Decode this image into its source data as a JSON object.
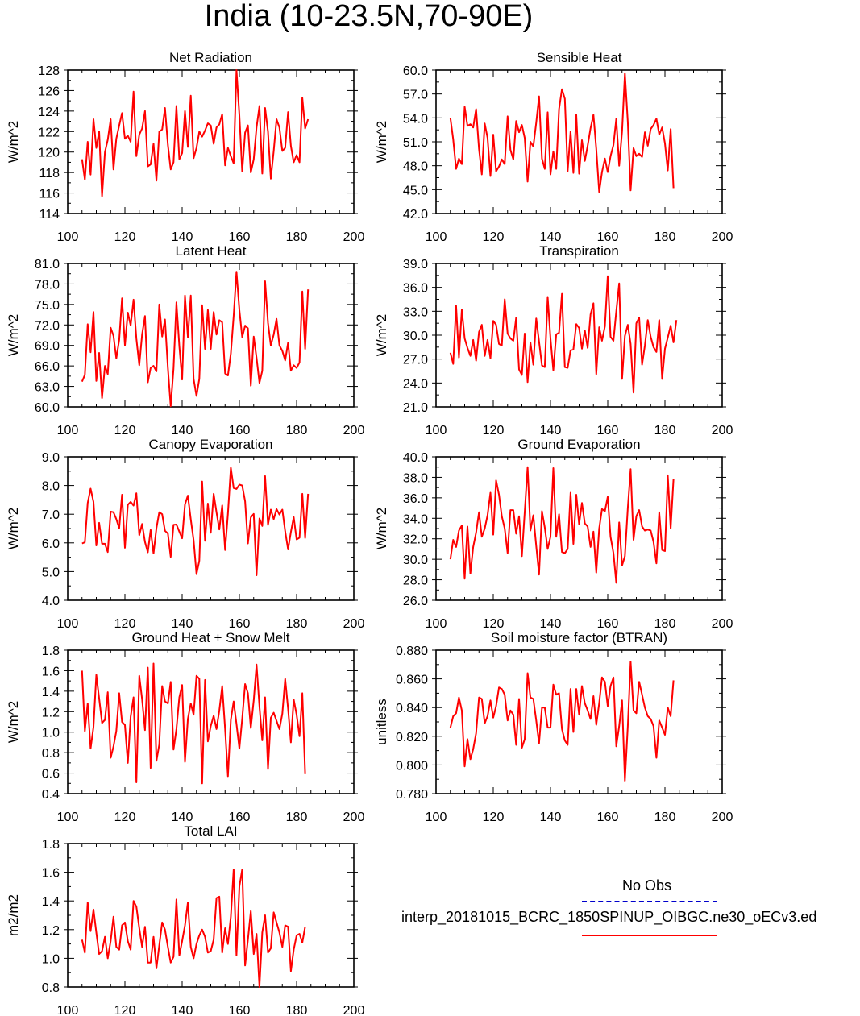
{
  "title": "India (10-23.5N,70-90E)",
  "line_color": "#ff0000",
  "legend": {
    "entries": [
      {
        "label": "No Obs",
        "color": "#0000cc",
        "style": "dashed"
      },
      {
        "label": "interp_20181015_BCRC_1850SPINUP_OIBGC.ne30_oECv3.ed",
        "color": "#ff0000",
        "style": "solid"
      }
    ]
  },
  "chart_data": [
    {
      "type": "line",
      "title": "Net Radiation",
      "ylabel": "W/m^2",
      "xlabel": "",
      "xlim": [
        100,
        200
      ],
      "xticks": [
        "100",
        "120",
        "140",
        "160",
        "180",
        "200"
      ],
      "ylim": [
        114,
        128
      ],
      "yticks": [
        "114",
        "116",
        "118",
        "120",
        "122",
        "124",
        "126",
        "128"
      ],
      "x_start": 105,
      "values": [
        119.3,
        117.3,
        121.0,
        117.8,
        123.2,
        120.4,
        122.0,
        115.7,
        120.0,
        121.2,
        123.2,
        118.3,
        121.3,
        122.6,
        123.8,
        121.3,
        121.6,
        121.0,
        125.9,
        119.6,
        121.7,
        122.3,
        124.0,
        118.6,
        118.8,
        120.8,
        117.2,
        122.0,
        122.2,
        124.3,
        120.7,
        118.3,
        119.0,
        124.5,
        119.3,
        119.9,
        124.0,
        120.5,
        125.5,
        119.4,
        120.4,
        122.0,
        121.5,
        122.1,
        122.8,
        122.6,
        120.8,
        122.4,
        122.7,
        123.7,
        118.7,
        120.4,
        119.6,
        118.9,
        128.0,
        123.6,
        118.1,
        121.9,
        122.6,
        118.0,
        119.3,
        122.4,
        124.5,
        117.9,
        124.3,
        122.0,
        117.4,
        120.1,
        123.2,
        122.4,
        120.1,
        120.4,
        123.9,
        120.6,
        119.0,
        119.7,
        119.0,
        125.3,
        122.3,
        123.2
      ]
    },
    {
      "type": "line",
      "title": "Sensible Heat",
      "ylabel": "W/m^2",
      "xlabel": "",
      "xlim": [
        100,
        200
      ],
      "xticks": [
        "100",
        "120",
        "140",
        "160",
        "180",
        "200"
      ],
      "ylim": [
        42,
        60
      ],
      "yticks": [
        "42.0",
        "45.0",
        "48.0",
        "51.0",
        "54.0",
        "57.0",
        "60.0"
      ],
      "x_start": 105,
      "values": [
        54.0,
        51.3,
        47.6,
        48.9,
        48.2,
        55.4,
        53.0,
        53.2,
        52.8,
        55.1,
        50.1,
        46.9,
        53.3,
        51.5,
        46.7,
        51.9,
        47.3,
        47.9,
        48.8,
        48.2,
        54.2,
        50.0,
        48.8,
        53.6,
        52.2,
        53.1,
        51.5,
        46.0,
        51.0,
        50.4,
        53.4,
        56.7,
        48.9,
        47.6,
        54.7,
        46.9,
        49.8,
        47.6,
        55.1,
        57.6,
        56.4,
        47.3,
        52.3,
        47.1,
        54.4,
        47.0,
        51.2,
        48.6,
        50.5,
        52.7,
        54.4,
        50.1,
        44.7,
        47.2,
        48.9,
        47.2,
        49.2,
        50.6,
        53.9,
        48.0,
        52.3,
        59.6,
        53.5,
        44.9,
        50.2,
        49.2,
        49.5,
        49.1,
        52.2,
        50.5,
        52.6,
        53.1,
        53.9,
        51.9,
        52.8,
        50.8,
        47.4,
        52.6,
        45.2
      ]
    },
    {
      "type": "line",
      "title": "Latent Heat",
      "ylabel": "W/m^2",
      "xlabel": "",
      "xlim": [
        100,
        200
      ],
      "xticks": [
        "100",
        "120",
        "140",
        "160",
        "180",
        "200"
      ],
      "ylim": [
        60,
        81
      ],
      "yticks": [
        "60.0",
        "63.0",
        "66.0",
        "69.0",
        "72.0",
        "75.0",
        "78.0",
        "81.0"
      ],
      "x_start": 105,
      "values": [
        63.7,
        64.7,
        72.1,
        68.0,
        73.9,
        63.8,
        67.9,
        61.3,
        66.0,
        64.8,
        71.6,
        70.4,
        67.1,
        69.8,
        75.9,
        69.0,
        73.8,
        71.9,
        75.7,
        70.0,
        66.1,
        70.6,
        73.3,
        63.6,
        65.7,
        66.0,
        65.2,
        75.0,
        70.3,
        72.8,
        65.7,
        60.1,
        65.6,
        75.3,
        68.9,
        64.0,
        76.3,
        70.2,
        76.3,
        64.1,
        61.6,
        64.1,
        74.9,
        68.5,
        74.2,
        68.5,
        73.9,
        70.6,
        72.7,
        72.4,
        64.9,
        64.6,
        67.8,
        73.3,
        79.8,
        74.2,
        70.2,
        71.9,
        71.5,
        63.1,
        70.3,
        67.2,
        63.5,
        65.3,
        78.4,
        72.3,
        69.0,
        70.6,
        72.9,
        69.0,
        68.2,
        66.8,
        69.4,
        65.3,
        66.1,
        65.7,
        66.5,
        76.9,
        68.5,
        77.2
      ]
    },
    {
      "type": "line",
      "title": "Transpiration",
      "ylabel": "W/m^2",
      "xlabel": "",
      "xlim": [
        100,
        200
      ],
      "xticks": [
        "100",
        "120",
        "140",
        "160",
        "180",
        "200"
      ],
      "ylim": [
        21,
        39
      ],
      "yticks": [
        "21.0",
        "24.0",
        "27.0",
        "30.0",
        "33.0",
        "36.0",
        "39.0"
      ],
      "x_start": 105,
      "values": [
        27.8,
        26.4,
        33.7,
        27.2,
        33.2,
        29.6,
        28.4,
        27.4,
        29.4,
        26.8,
        30.4,
        31.3,
        27.4,
        29.4,
        27.1,
        31.8,
        31.3,
        28.9,
        28.7,
        34.5,
        30.2,
        29.6,
        29.3,
        32.2,
        25.7,
        25.0,
        30.2,
        24.1,
        29.1,
        26.3,
        32.1,
        29.2,
        26.2,
        26.0,
        34.8,
        29.6,
        25.6,
        30.1,
        30.3,
        35.2,
        26.0,
        25.9,
        28.1,
        28.2,
        31.4,
        30.9,
        28.3,
        30.6,
        28.4,
        32.6,
        34.0,
        25.1,
        31.0,
        29.3,
        31.1,
        37.4,
        29.8,
        29.3,
        33.0,
        36.5,
        24.5,
        29.9,
        31.3,
        28.9,
        22.8,
        31.5,
        32.2,
        26.3,
        28.7,
        31.9,
        29.8,
        28.5,
        27.9,
        31.9,
        24.5,
        28.3,
        29.7,
        31.2,
        29.1,
        31.9
      ]
    },
    {
      "type": "line",
      "title": "Canopy Evaporation",
      "ylabel": "W/m^2",
      "xlabel": "",
      "xlim": [
        100,
        200
      ],
      "xticks": [
        "100",
        "120",
        "140",
        "160",
        "180",
        "200"
      ],
      "ylim": [
        4,
        9
      ],
      "yticks": [
        "4.0",
        "5.0",
        "6.0",
        "7.0",
        "8.0",
        "9.0"
      ],
      "x_start": 105,
      "values": [
        5.98,
        6.02,
        7.39,
        7.89,
        7.43,
        5.91,
        6.7,
        5.97,
        5.97,
        5.68,
        7.09,
        7.07,
        6.83,
        6.51,
        7.68,
        5.83,
        7.33,
        7.43,
        7.3,
        7.73,
        6.27,
        6.66,
        6.03,
        5.67,
        6.45,
        5.63,
        6.51,
        7.07,
        7.0,
        6.42,
        6.33,
        5.51,
        6.63,
        6.64,
        6.39,
        6.16,
        7.34,
        7.65,
        6.82,
        6.1,
        4.91,
        5.38,
        8.14,
        6.07,
        7.37,
        6.35,
        7.71,
        7.07,
        6.47,
        7.31,
        5.75,
        7.02,
        8.62,
        7.91,
        7.88,
        8.03,
        8.0,
        7.45,
        5.98,
        6.89,
        7.01,
        4.87,
        6.85,
        6.59,
        8.33,
        6.63,
        7.16,
        6.83,
        7.18,
        6.99,
        7.16,
        6.41,
        5.77,
        6.38,
        6.9,
        6.12,
        6.18,
        7.71,
        6.17,
        7.71
      ]
    },
    {
      "type": "line",
      "title": "Ground Evaporation",
      "ylabel": "W/m^2",
      "xlabel": "",
      "xlim": [
        100,
        200
      ],
      "xticks": [
        "100",
        "120",
        "140",
        "160",
        "180",
        "200"
      ],
      "ylim": [
        26,
        40
      ],
      "yticks": [
        "26.0",
        "28.0",
        "30.0",
        "32.0",
        "34.0",
        "36.0",
        "38.0",
        "40.0"
      ],
      "x_start": 105,
      "values": [
        30.0,
        31.9,
        31.2,
        32.8,
        33.3,
        28.1,
        33.2,
        28.6,
        31.2,
        32.6,
        34.6,
        32.2,
        33.0,
        34.3,
        36.5,
        32.4,
        37.7,
        36.3,
        34.2,
        33.0,
        30.6,
        34.8,
        34.8,
        32.5,
        34.2,
        30.3,
        34.6,
        39.0,
        32.8,
        34.3,
        31.3,
        28.5,
        34.7,
        33.1,
        31.0,
        32.2,
        38.9,
        32.2,
        34.4,
        30.7,
        30.6,
        31.0,
        36.5,
        31.5,
        36.3,
        33.4,
        35.5,
        33.5,
        33.2,
        31.2,
        32.7,
        28.7,
        33.0,
        34.9,
        34.7,
        36.1,
        32.2,
        30.6,
        27.7,
        33.6,
        29.4,
        30.3,
        35.0,
        38.8,
        31.9,
        34.2,
        34.8,
        33.2,
        32.8,
        32.9,
        32.8,
        31.7,
        29.6,
        34.6,
        30.9,
        30.8,
        38.2,
        33.0,
        37.8
      ]
    },
    {
      "type": "line",
      "title": "Ground Heat + Snow Melt",
      "ylabel": "W/m^2",
      "xlabel": "",
      "xlim": [
        100,
        200
      ],
      "xticks": [
        "100",
        "120",
        "140",
        "160",
        "180",
        "200"
      ],
      "ylim": [
        0.4,
        1.8
      ],
      "yticks": [
        "0.4",
        "0.6",
        "0.8",
        "1.0",
        "1.2",
        "1.4",
        "1.6",
        "1.8"
      ],
      "x_start": 105,
      "values": [
        1.6,
        1.01,
        1.28,
        0.84,
        1.05,
        1.56,
        1.33,
        1.09,
        1.12,
        1.39,
        0.75,
        0.86,
        1.01,
        1.38,
        1.1,
        1.07,
        0.7,
        1.15,
        1.34,
        0.51,
        1.55,
        1.32,
        1.02,
        1.63,
        0.65,
        1.67,
        0.72,
        0.88,
        1.45,
        1.3,
        1.28,
        1.49,
        0.83,
        1.03,
        1.34,
        1.46,
        0.71,
        1.13,
        1.28,
        1.17,
        1.55,
        1.52,
        0.5,
        1.51,
        0.91,
        1.06,
        1.16,
        1.03,
        1.21,
        1.45,
        1.03,
        0.57,
        1.12,
        1.3,
        1.08,
        0.84,
        1.13,
        1.47,
        1.38,
        1.04,
        1.31,
        1.66,
        1.25,
        0.92,
        1.34,
        0.64,
        1.14,
        1.19,
        1.11,
        1.03,
        1.18,
        1.52,
        1.23,
        0.9,
        1.32,
        1.17,
        0.96,
        1.38,
        0.59
      ]
    },
    {
      "type": "line",
      "title": "Soil moisture factor (BTRAN)",
      "ylabel": "unitless",
      "xlabel": "",
      "xlim": [
        100,
        200
      ],
      "xticks": [
        "100",
        "120",
        "140",
        "160",
        "180",
        "200"
      ],
      "ylim": [
        0.78,
        0.88
      ],
      "yticks": [
        "0.780",
        "0.800",
        "0.820",
        "0.840",
        "0.860",
        "0.880"
      ],
      "x_start": 105,
      "values": [
        0.826,
        0.834,
        0.836,
        0.847,
        0.838,
        0.799,
        0.818,
        0.804,
        0.811,
        0.822,
        0.847,
        0.846,
        0.829,
        0.834,
        0.845,
        0.833,
        0.841,
        0.854,
        0.853,
        0.849,
        0.831,
        0.838,
        0.835,
        0.814,
        0.846,
        0.812,
        0.818,
        0.864,
        0.847,
        0.846,
        0.831,
        0.815,
        0.84,
        0.84,
        0.826,
        0.826,
        0.856,
        0.849,
        0.85,
        0.825,
        0.817,
        0.814,
        0.853,
        0.823,
        0.853,
        0.835,
        0.855,
        0.843,
        0.838,
        0.832,
        0.848,
        0.828,
        0.843,
        0.861,
        0.858,
        0.841,
        0.855,
        0.861,
        0.813,
        0.827,
        0.845,
        0.789,
        0.827,
        0.872,
        0.838,
        0.836,
        0.858,
        0.849,
        0.84,
        0.834,
        0.832,
        0.827,
        0.805,
        0.831,
        0.826,
        0.821,
        0.84,
        0.834,
        0.859
      ]
    },
    {
      "type": "line",
      "title": "Total LAI",
      "ylabel": "m2/m2",
      "xlabel": "",
      "xlim": [
        100,
        200
      ],
      "xticks": [
        "100",
        "120",
        "140",
        "160",
        "180",
        "200"
      ],
      "ylim": [
        0.8,
        1.8
      ],
      "yticks": [
        "0.8",
        "1.0",
        "1.2",
        "1.4",
        "1.6",
        "1.8"
      ],
      "x_start": 105,
      "values": [
        1.13,
        1.04,
        1.39,
        1.19,
        1.34,
        1.18,
        1.03,
        1.05,
        1.15,
        1.0,
        1.12,
        1.29,
        1.08,
        1.06,
        1.23,
        1.25,
        1.12,
        1.06,
        1.4,
        1.36,
        1.21,
        1.08,
        1.22,
        0.97,
        0.97,
        1.15,
        0.93,
        1.09,
        1.25,
        1.2,
        1.08,
        0.97,
        1.01,
        1.41,
        1.02,
        1.12,
        1.23,
        1.39,
        1.08,
        1.0,
        1.1,
        1.16,
        1.2,
        1.15,
        1.04,
        1.05,
        1.13,
        1.42,
        1.43,
        1.04,
        1.21,
        1.1,
        1.29,
        1.62,
        1.02,
        1.5,
        1.62,
        0.95,
        1.13,
        1.33,
        1.03,
        1.17,
        0.8,
        1.18,
        1.3,
        1.04,
        1.07,
        1.32,
        1.25,
        1.18,
        1.08,
        1.23,
        1.22,
        0.91,
        1.06,
        1.16,
        1.17,
        1.11,
        1.22
      ]
    }
  ]
}
